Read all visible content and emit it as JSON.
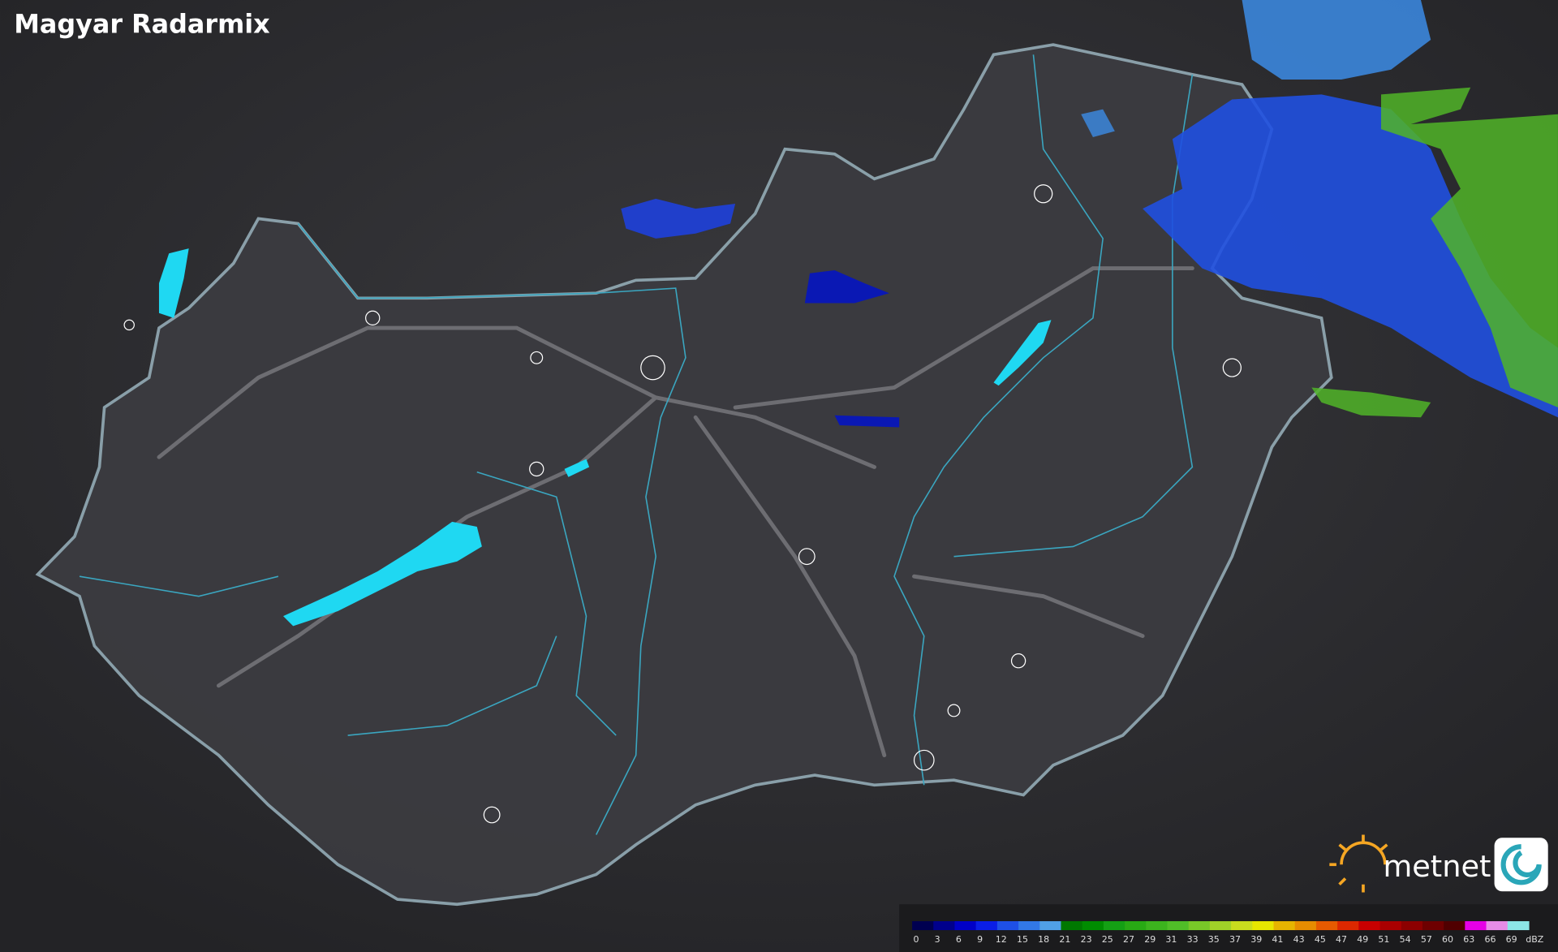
{
  "header": {
    "title": "Magyar Radarmix"
  },
  "logo": {
    "text": "metnet"
  },
  "legend": {
    "unit": "dBZ",
    "values": [
      0,
      3,
      6,
      9,
      12,
      15,
      18,
      21,
      23,
      25,
      27,
      29,
      31,
      33,
      35,
      37,
      39,
      41,
      43,
      45,
      47,
      49,
      51,
      54,
      57,
      60,
      63,
      66,
      69
    ],
    "colors": [
      "#000050",
      "#00008c",
      "#0000c8",
      "#0a1ee6",
      "#1e50e6",
      "#3278e6",
      "#50a0e6",
      "#007800",
      "#008c00",
      "#14a014",
      "#28aa14",
      "#3cb41e",
      "#50be28",
      "#78c828",
      "#a0d228",
      "#c8dc1e",
      "#e6e600",
      "#e6b400",
      "#e68c00",
      "#e65a00",
      "#dc2800",
      "#c80000",
      "#aa0000",
      "#8c0000",
      "#6e0000",
      "#500000",
      "#e600e6",
      "#e68ce6",
      "#8ce6e6"
    ]
  }
}
